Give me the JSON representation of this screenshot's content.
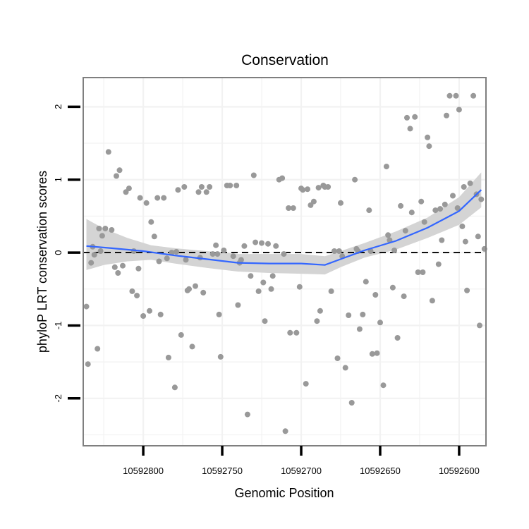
{
  "chart_data": {
    "type": "scatter",
    "title": "Conservation",
    "xlabel": "Genomic Position",
    "ylabel": "phyloP LRT conservation scores",
    "x_reversed": true,
    "xlim": [
      10592838,
      10592583
    ],
    "ylim": [
      -2.65,
      2.4
    ],
    "x_ticks": [
      10592800,
      10592750,
      10592700,
      10592650,
      10592600
    ],
    "x_tick_labels": [
      "10592800",
      "10592750",
      "10592700",
      "10592650",
      "10592600"
    ],
    "y_ticks": [
      -2,
      -1,
      0,
      1,
      2
    ],
    "y_tick_labels": [
      "-2",
      "-1",
      "0",
      "1",
      "2"
    ],
    "reference_line": {
      "y": 0,
      "style": "dashed",
      "color": "#000000"
    },
    "colors": {
      "points": "#999999",
      "smooth": "#3366ff",
      "ribbon": "#d4d4d4",
      "grid": "#f2f2f2",
      "border": "#7f7f7f"
    },
    "points": [
      [
        10592836,
        -0.74
      ],
      [
        10592835,
        -1.53
      ],
      [
        10592833,
        -0.14
      ],
      [
        10592831,
        -0.03
      ],
      [
        10592829,
        -1.32
      ],
      [
        10592828,
        0.33
      ],
      [
        10592826,
        0.23
      ],
      [
        10592824,
        0.33
      ],
      [
        10592822,
        1.38
      ],
      [
        10592820,
        0.31
      ],
      [
        10592818,
        -0.2
      ],
      [
        10592817,
        1.05
      ],
      [
        10592815,
        1.13
      ],
      [
        10592813,
        -0.18
      ],
      [
        10592811,
        0.83
      ],
      [
        10592809,
        0.88
      ],
      [
        10592807,
        -0.53
      ],
      [
        10592806,
        0.02
      ],
      [
        10592804,
        -0.59
      ],
      [
        10592802,
        0.75
      ],
      [
        10592800,
        -0.87
      ],
      [
        10592798,
        0.68
      ],
      [
        10592796,
        -0.8
      ],
      [
        10592795,
        0.42
      ],
      [
        10592793,
        0.22
      ],
      [
        10592791,
        0.75
      ],
      [
        10592789,
        -0.85
      ],
      [
        10592787,
        0.75
      ],
      [
        10592785,
        -0.08
      ],
      [
        10592784,
        -1.44
      ],
      [
        10592782,
        0.0
      ],
      [
        10592780,
        -1.85
      ],
      [
        10592778,
        0.86
      ],
      [
        10592776,
        -1.13
      ],
      [
        10592774,
        0.9
      ],
      [
        10592773,
        -0.1
      ],
      [
        10592771,
        -0.5
      ],
      [
        10592769,
        -1.29
      ],
      [
        10592767,
        -0.46
      ],
      [
        10592765,
        0.83
      ],
      [
        10592763,
        0.9
      ],
      [
        10592762,
        -0.55
      ],
      [
        10592760,
        0.83
      ],
      [
        10592758,
        0.9
      ],
      [
        10592756,
        -0.02
      ],
      [
        10592754,
        0.1
      ],
      [
        10592752,
        -0.85
      ],
      [
        10592751,
        -1.43
      ],
      [
        10592749,
        0.03
      ],
      [
        10592747,
        0.92
      ],
      [
        10592745,
        0.92
      ],
      [
        10592743,
        -0.05
      ],
      [
        10592741,
        0.92
      ],
      [
        10592740,
        -0.72
      ],
      [
        10592738,
        -0.1
      ],
      [
        10592736,
        0.09
      ],
      [
        10592734,
        -2.22
      ],
      [
        10592732,
        -0.32
      ],
      [
        10592730,
        1.06
      ],
      [
        10592729,
        0.14
      ],
      [
        10592727,
        -0.53
      ],
      [
        10592725,
        0.13
      ],
      [
        10592723,
        -0.94
      ],
      [
        10592721,
        0.12
      ],
      [
        10592719,
        -0.5
      ],
      [
        10592718,
        -0.32
      ],
      [
        10592716,
        0.09
      ],
      [
        10592714,
        1.0
      ],
      [
        10592712,
        1.02
      ],
      [
        10592710,
        -2.45
      ],
      [
        10592708,
        0.61
      ],
      [
        10592707,
        -1.1
      ],
      [
        10592705,
        0.61
      ],
      [
        10592703,
        -1.1
      ],
      [
        10592701,
        -0.47
      ],
      [
        10592699,
        0.86
      ],
      [
        10592697,
        -1.8
      ],
      [
        10592696,
        0.87
      ],
      [
        10592694,
        0.65
      ],
      [
        10592692,
        0.7
      ],
      [
        10592690,
        -0.94
      ],
      [
        10592688,
        -0.8
      ],
      [
        10592686,
        0.92
      ],
      [
        10592685,
        0.9
      ],
      [
        10592683,
        0.9
      ],
      [
        10592681,
        -0.53
      ],
      [
        10592679,
        0.02
      ],
      [
        10592677,
        -1.45
      ],
      [
        10592675,
        0.68
      ],
      [
        10592674,
        -0.05
      ],
      [
        10592672,
        -1.58
      ],
      [
        10592670,
        -0.86
      ],
      [
        10592668,
        -2.06
      ],
      [
        10592666,
        1.0
      ],
      [
        10592664,
        0.02
      ],
      [
        10592663,
        -1.05
      ],
      [
        10592661,
        -0.85
      ],
      [
        10592659,
        -0.4
      ],
      [
        10592657,
        0.58
      ],
      [
        10592655,
        -1.39
      ],
      [
        10592653,
        -0.58
      ],
      [
        10592652,
        -1.38
      ],
      [
        10592650,
        -0.96
      ],
      [
        10592648,
        -1.82
      ],
      [
        10592646,
        1.18
      ],
      [
        10592644,
        0.17
      ],
      [
        10592642,
        -0.48
      ],
      [
        10592641,
        0.03
      ],
      [
        10592639,
        -1.17
      ],
      [
        10592637,
        0.64
      ],
      [
        10592635,
        -0.6
      ],
      [
        10592633,
        1.85
      ],
      [
        10592631,
        1.7
      ],
      [
        10592630,
        0.55
      ],
      [
        10592628,
        1.86
      ],
      [
        10592626,
        -0.27
      ],
      [
        10592624,
        0.7
      ],
      [
        10592622,
        0.42
      ],
      [
        10592620,
        1.58
      ],
      [
        10592619,
        1.46
      ],
      [
        10592617,
        -0.66
      ],
      [
        10592615,
        0.58
      ],
      [
        10592613,
        -0.16
      ],
      [
        10592611,
        0.17
      ],
      [
        10592609,
        0.66
      ],
      [
        10592608,
        1.88
      ],
      [
        10592606,
        2.15
      ],
      [
        10592604,
        0.78
      ],
      [
        10592602,
        2.15
      ],
      [
        10592600,
        1.96
      ],
      [
        10592598,
        0.36
      ],
      [
        10592597,
        0.9
      ],
      [
        10592595,
        -0.52
      ],
      [
        10592593,
        0.95
      ],
      [
        10592591,
        2.15
      ],
      [
        10592589,
        0.8
      ],
      [
        10592587,
        -1.0
      ],
      [
        10592586,
        0.73
      ],
      [
        10592584,
        0.05
      ],
      [
        10592832,
        0.08
      ],
      [
        10592827,
        0.02
      ],
      [
        10592816,
        -0.28
      ],
      [
        10592803,
        -0.22
      ],
      [
        10592790,
        -0.12
      ],
      [
        10592779,
        0.01
      ],
      [
        10592772,
        -0.52
      ],
      [
        10592764,
        -0.07
      ],
      [
        10592753,
        -0.02
      ],
      [
        10592739,
        -0.14
      ],
      [
        10592724,
        -0.41
      ],
      [
        10592711,
        -0.02
      ],
      [
        10592700,
        0.88
      ],
      [
        10592689,
        0.89
      ],
      [
        10592676,
        0.02
      ],
      [
        10592665,
        0.05
      ],
      [
        10592656,
        0.02
      ],
      [
        10592645,
        0.24
      ],
      [
        10592634,
        0.3
      ],
      [
        10592623,
        -0.27
      ],
      [
        10592612,
        0.6
      ],
      [
        10592601,
        0.61
      ],
      [
        10592596,
        0.15
      ],
      [
        10592588,
        0.22
      ]
    ],
    "smooth": [
      [
        10592836,
        0.09
      ],
      [
        10592820,
        0.06
      ],
      [
        10592800,
        0.02
      ],
      [
        10592780,
        -0.04
      ],
      [
        10592760,
        -0.09
      ],
      [
        10592740,
        -0.14
      ],
      [
        10592720,
        -0.15
      ],
      [
        10592700,
        -0.15
      ],
      [
        10592685,
        -0.17
      ],
      [
        10592675,
        -0.09
      ],
      [
        10592660,
        0.03
      ],
      [
        10592640,
        0.16
      ],
      [
        10592620,
        0.34
      ],
      [
        10592600,
        0.57
      ],
      [
        10592586,
        0.86
      ]
    ],
    "ribbon_upper": [
      [
        10592836,
        0.46
      ],
      [
        10592825,
        0.33
      ],
      [
        10592810,
        0.2
      ],
      [
        10592795,
        0.1
      ],
      [
        10592780,
        0.06
      ],
      [
        10592760,
        0.02
      ],
      [
        10592740,
        -0.02
      ],
      [
        10592720,
        -0.02
      ],
      [
        10592700,
        -0.02
      ],
      [
        10592685,
        -0.05
      ],
      [
        10592675,
        0.02
      ],
      [
        10592660,
        0.13
      ],
      [
        10592640,
        0.29
      ],
      [
        10592620,
        0.48
      ],
      [
        10592600,
        0.76
      ],
      [
        10592586,
        1.1
      ]
    ],
    "ribbon_lower": [
      [
        10592836,
        -0.24
      ],
      [
        10592825,
        -0.17
      ],
      [
        10592810,
        -0.12
      ],
      [
        10592795,
        -0.1
      ],
      [
        10592780,
        -0.15
      ],
      [
        10592760,
        -0.21
      ],
      [
        10592740,
        -0.26
      ],
      [
        10592720,
        -0.28
      ],
      [
        10592700,
        -0.29
      ],
      [
        10592685,
        -0.3
      ],
      [
        10592675,
        -0.2
      ],
      [
        10592660,
        -0.07
      ],
      [
        10592640,
        0.04
      ],
      [
        10592620,
        0.2
      ],
      [
        10592600,
        0.38
      ],
      [
        10592586,
        0.62
      ]
    ]
  }
}
